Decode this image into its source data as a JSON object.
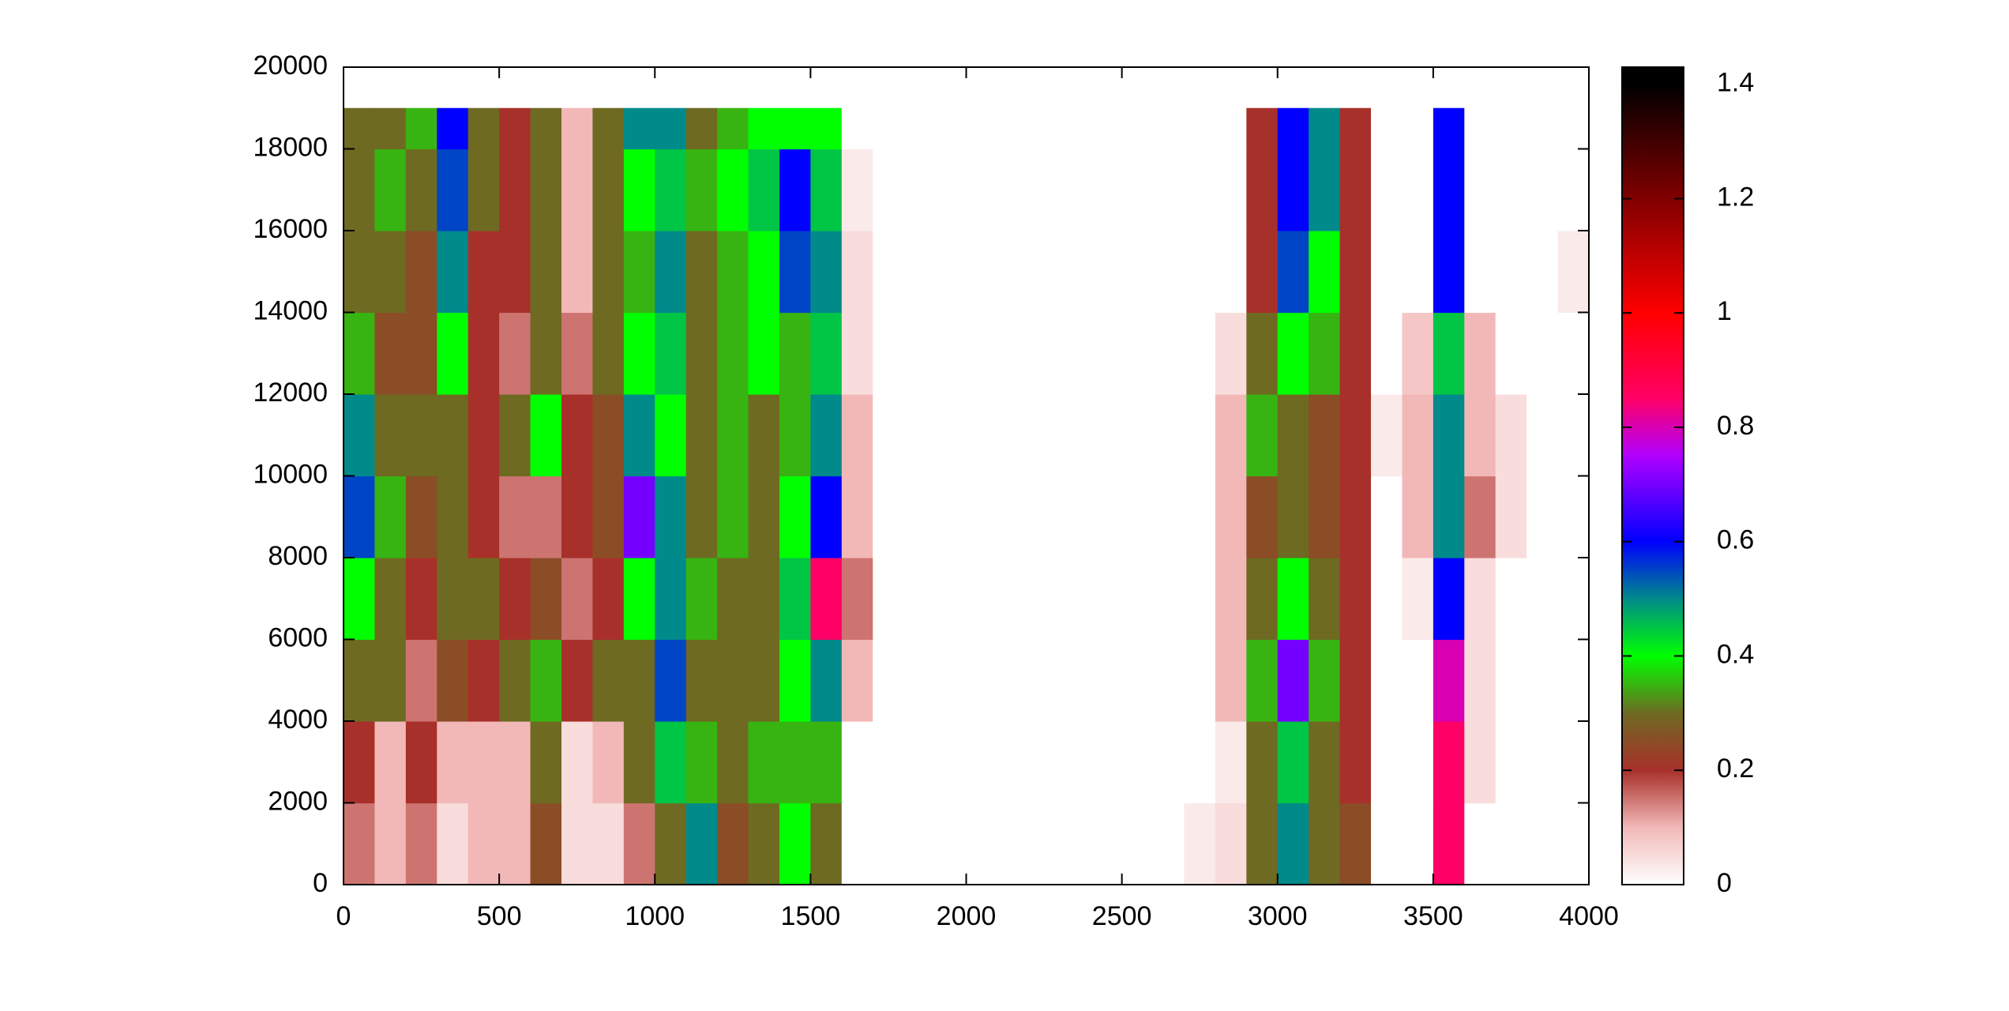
{
  "chart_data": {
    "type": "heatmap",
    "x_edges": [
      0,
      100,
      200,
      300,
      400,
      500,
      600,
      700,
      800,
      900,
      1000,
      1100,
      1200,
      1300,
      1400,
      1500,
      1600,
      1700,
      1800,
      1900,
      2000,
      2100,
      2200,
      2300,
      2400,
      2500,
      2600,
      2700,
      2800,
      2900,
      3000,
      3100,
      3200,
      3300,
      3400,
      3500,
      3600,
      3700,
      3800,
      3900,
      4000
    ],
    "y_edges": [
      0,
      2000,
      4000,
      6000,
      8000,
      10000,
      12000,
      14000,
      16000,
      18000,
      19000
    ],
    "z": [
      [
        0.15,
        0.1,
        0.15,
        0.05,
        0.1,
        0.1,
        0.25,
        0.05,
        0.05,
        0.15,
        0.3,
        0.5,
        0.25,
        0.3,
        0.4,
        0.3,
        0,
        0,
        0,
        0,
        0,
        0,
        0,
        0,
        0,
        0,
        0,
        0.03,
        0.05,
        0.3,
        0.5,
        0.3,
        0.25,
        0,
        0,
        0.85,
        0,
        0,
        0,
        0
      ],
      [
        0.2,
        0.1,
        0.2,
        0.1,
        0.1,
        0.1,
        0.3,
        0.05,
        0.1,
        0.3,
        0.45,
        0.35,
        0.3,
        0.35,
        0.35,
        0.35,
        0,
        0,
        0,
        0,
        0,
        0,
        0,
        0,
        0,
        0,
        0,
        0,
        0.03,
        0.3,
        0.45,
        0.3,
        0.2,
        0,
        0,
        0.85,
        0.05,
        0,
        0,
        0
      ],
      [
        0.3,
        0.3,
        0.15,
        0.25,
        0.2,
        0.3,
        0.35,
        0.2,
        0.3,
        0.3,
        0.55,
        0.3,
        0.3,
        0.3,
        0.4,
        0.5,
        0.1,
        0,
        0,
        0,
        0,
        0,
        0,
        0,
        0,
        0,
        0,
        0,
        0.1,
        0.35,
        0.7,
        0.35,
        0.2,
        0,
        0,
        0.8,
        0.05,
        0,
        0,
        0
      ],
      [
        0.4,
        0.3,
        0.2,
        0.3,
        0.3,
        0.2,
        0.25,
        0.15,
        0.2,
        0.4,
        0.5,
        0.35,
        0.3,
        0.3,
        0.45,
        0.85,
        0.15,
        0,
        0,
        0,
        0,
        0,
        0,
        0,
        0,
        0,
        0,
        0,
        0.1,
        0.3,
        0.4,
        0.3,
        0.2,
        0,
        0.03,
        0.6,
        0.05,
        0,
        0,
        0
      ],
      [
        0.55,
        0.35,
        0.25,
        0.3,
        0.2,
        0.15,
        0.15,
        0.2,
        0.25,
        0.7,
        0.5,
        0.3,
        0.35,
        0.3,
        0.4,
        0.6,
        0.1,
        0,
        0,
        0,
        0,
        0,
        0,
        0,
        0,
        0,
        0,
        0,
        0.1,
        0.25,
        0.3,
        0.25,
        0.2,
        0,
        0.1,
        0.5,
        0.15,
        0.05,
        0,
        0
      ],
      [
        0.5,
        0.3,
        0.3,
        0.3,
        0.2,
        0.3,
        0.4,
        0.2,
        0.25,
        0.5,
        0.4,
        0.3,
        0.35,
        0.3,
        0.35,
        0.5,
        0.1,
        0,
        0,
        0,
        0,
        0,
        0,
        0,
        0,
        0,
        0,
        0,
        0.1,
        0.35,
        0.3,
        0.25,
        0.2,
        0.03,
        0.1,
        0.5,
        0.1,
        0.05,
        0,
        0
      ],
      [
        0.35,
        0.25,
        0.25,
        0.4,
        0.2,
        0.15,
        0.3,
        0.15,
        0.3,
        0.4,
        0.45,
        0.3,
        0.35,
        0.4,
        0.35,
        0.45,
        0.05,
        0,
        0,
        0,
        0,
        0,
        0,
        0,
        0,
        0,
        0,
        0,
        0.05,
        0.3,
        0.4,
        0.35,
        0.2,
        0,
        0.08,
        0.45,
        0.1,
        0,
        0,
        0
      ],
      [
        0.3,
        0.3,
        0.25,
        0.5,
        0.2,
        0.2,
        0.3,
        0.1,
        0.3,
        0.35,
        0.5,
        0.3,
        0.35,
        0.4,
        0.55,
        0.5,
        0.05,
        0,
        0,
        0,
        0,
        0,
        0,
        0,
        0,
        0,
        0,
        0,
        0,
        0.2,
        0.55,
        0.4,
        0.2,
        0,
        0,
        0.6,
        0,
        0,
        0,
        0.03
      ],
      [
        0.3,
        0.35,
        0.3,
        0.55,
        0.3,
        0.2,
        0.3,
        0.1,
        0.3,
        0.4,
        0.45,
        0.35,
        0.4,
        0.45,
        0.6,
        0.45,
        0.03,
        0,
        0,
        0,
        0,
        0,
        0,
        0,
        0,
        0,
        0,
        0,
        0,
        0.2,
        0.6,
        0.5,
        0.2,
        0,
        0,
        0.6,
        0,
        0,
        0,
        0
      ],
      [
        0.3,
        0.3,
        0.35,
        0.6,
        0.3,
        0.2,
        0.3,
        0.1,
        0.3,
        0.5,
        0.5,
        0.3,
        0.35,
        0.4,
        0.4,
        0.4,
        0,
        0,
        0,
        0,
        0,
        0,
        0,
        0,
        0,
        0,
        0,
        0,
        0,
        0.2,
        0.6,
        0.5,
        0.2,
        0,
        0,
        0.6,
        0,
        0,
        0,
        0
      ]
    ],
    "xlim": [
      0,
      4000
    ],
    "xticks": [
      0,
      500,
      1000,
      1500,
      2000,
      2500,
      3000,
      3500,
      4000
    ],
    "ylim": [
      0,
      20000
    ],
    "yticks": [
      0,
      2000,
      4000,
      6000,
      8000,
      10000,
      12000,
      14000,
      16000,
      18000,
      20000
    ],
    "zlim": [
      0,
      1.43
    ],
    "zticks": [
      0,
      0.2,
      0.4,
      0.6,
      0.8,
      1,
      1.2,
      1.4
    ],
    "colormap": [
      {
        "value": 0,
        "color": "#ffffff"
      },
      {
        "value": 0.1,
        "color": "#f2b8b8"
      },
      {
        "value": 0.2,
        "color": "#a8302a"
      },
      {
        "value": 0.3,
        "color": "#6e6a22"
      },
      {
        "value": 0.4,
        "color": "#00ff00"
      },
      {
        "value": 0.5,
        "color": "#008a8a"
      },
      {
        "value": 0.6,
        "color": "#0000ff"
      },
      {
        "value": 0.75,
        "color": "#b000ff"
      },
      {
        "value": 0.85,
        "color": "#ff0066"
      },
      {
        "value": 1,
        "color": "#ff0000"
      },
      {
        "value": 1.2,
        "color": "#800000"
      },
      {
        "value": 1.4,
        "color": "#000000"
      }
    ]
  }
}
